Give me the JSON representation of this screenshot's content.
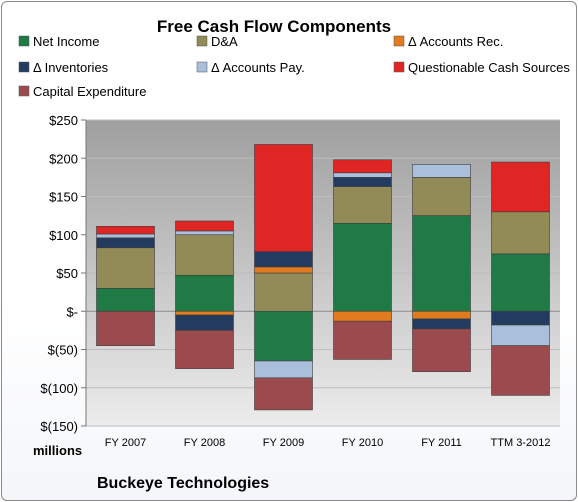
{
  "chart_data": {
    "type": "bar",
    "stacked": true,
    "title": "Free Cash Flow Components",
    "units_label": "millions",
    "footer": "Buckeye Technologies",
    "categories": [
      "FY 2007",
      "FY 2008",
      "FY 2009",
      "FY 2010",
      "FY 2011",
      "TTM 3-2012"
    ],
    "ylim": [
      -150,
      250
    ],
    "yticks": [
      250,
      200,
      150,
      100,
      50,
      0,
      -50,
      -100,
      -150
    ],
    "ytick_labels": [
      "$250",
      "$200",
      "$150",
      "$100",
      "$50",
      "$-",
      "$(50)",
      "$(100)",
      "$(150)"
    ],
    "grid": true,
    "legend_position": "top",
    "series": [
      {
        "name": "Net Income",
        "color": "#1f7a45",
        "values": [
          30,
          47,
          -65,
          115,
          125,
          75
        ]
      },
      {
        "name": "D&A",
        "color": "#938b57",
        "values": [
          53,
          53,
          50,
          48,
          50,
          55
        ]
      },
      {
        "name": "Δ Accounts Rec.",
        "color": "#e07c1f",
        "values": [
          0,
          -5,
          8,
          -13,
          -10,
          0
        ]
      },
      {
        "name": "Δ Inventories",
        "color": "#243b60",
        "values": [
          13,
          -20,
          20,
          12,
          -13,
          -18
        ]
      },
      {
        "name": "Δ Accounts Pay.",
        "color": "#a9bfdc",
        "values": [
          5,
          5,
          -22,
          6,
          17,
          -27
        ]
      },
      {
        "name": "Questionable Cash Sources",
        "color": "#e02525",
        "values": [
          10,
          13,
          140,
          17,
          0,
          65
        ]
      },
      {
        "name": "Capital Expenditure",
        "color": "#9b4a4d",
        "values": [
          -45,
          -50,
          -42,
          -50,
          -56,
          -65
        ]
      }
    ]
  }
}
